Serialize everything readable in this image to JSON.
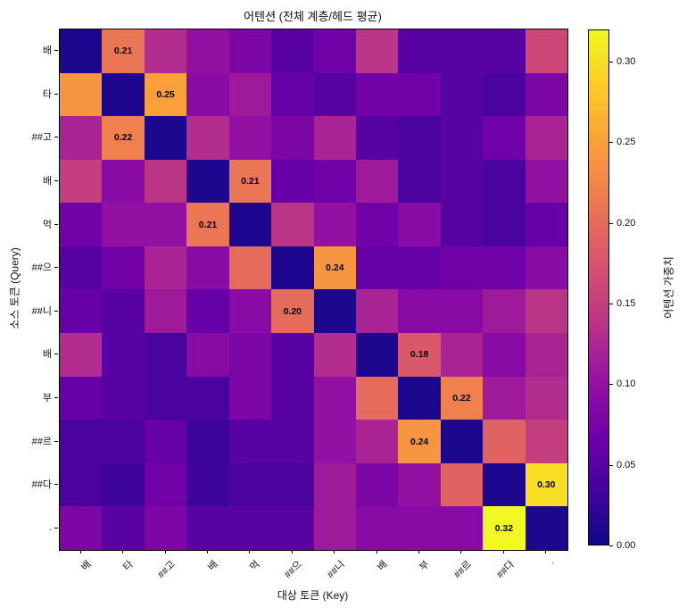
{
  "title": "어텐션 (전체 계층/헤드 평균)",
  "chart_data": {
    "type": "heatmap",
    "title": "어텐션 (전체 계층/헤드 평균)",
    "xlabel": "대상 토큰 (Key)",
    "ylabel": "소스 토큰 (Query)",
    "colorbar_label": "어텐션 가중치",
    "x_tokens": [
      "배",
      "타",
      "##고",
      "배",
      "먹",
      "##으",
      "##니",
      "배",
      "부",
      "##르",
      "##다",
      "."
    ],
    "y_tokens": [
      "배",
      "타",
      "##고",
      "배",
      "먹",
      "##으",
      "##니",
      "배",
      "부",
      "##르",
      "##다",
      "."
    ],
    "vmin": 0.0,
    "vmax": 0.32,
    "colorbar_ticks": [
      "0.00",
      "0.05",
      "0.10",
      "0.15",
      "0.20",
      "0.25",
      "0.30"
    ],
    "colormap": "plasma",
    "colormap_stops": [
      "#0d0887",
      "#41049d",
      "#6a00a8",
      "#8f0da4",
      "#b12a90",
      "#cc4778",
      "#e16462",
      "#f2844b",
      "#fca636",
      "#fcce25",
      "#f0f921"
    ],
    "values": [
      [
        0.01,
        0.21,
        0.13,
        0.1,
        0.08,
        0.05,
        0.07,
        0.14,
        0.05,
        0.05,
        0.05,
        0.16
      ],
      [
        0.24,
        0.01,
        0.25,
        0.09,
        0.11,
        0.06,
        0.05,
        0.07,
        0.07,
        0.05,
        0.04,
        0.08
      ],
      [
        0.12,
        0.22,
        0.01,
        0.13,
        0.1,
        0.08,
        0.12,
        0.05,
        0.04,
        0.05,
        0.07,
        0.12
      ],
      [
        0.15,
        0.09,
        0.14,
        0.01,
        0.21,
        0.06,
        0.07,
        0.11,
        0.04,
        0.05,
        0.04,
        0.1
      ],
      [
        0.07,
        0.1,
        0.1,
        0.21,
        0.01,
        0.14,
        0.1,
        0.07,
        0.09,
        0.05,
        0.04,
        0.06
      ],
      [
        0.05,
        0.07,
        0.12,
        0.09,
        0.2,
        0.01,
        0.24,
        0.06,
        0.06,
        0.07,
        0.07,
        0.09
      ],
      [
        0.06,
        0.05,
        0.11,
        0.06,
        0.09,
        0.2,
        0.01,
        0.12,
        0.09,
        0.09,
        0.11,
        0.14
      ],
      [
        0.13,
        0.05,
        0.04,
        0.09,
        0.08,
        0.05,
        0.13,
        0.01,
        0.18,
        0.12,
        0.09,
        0.12
      ],
      [
        0.06,
        0.05,
        0.04,
        0.04,
        0.08,
        0.05,
        0.1,
        0.2,
        0.01,
        0.22,
        0.11,
        0.13
      ],
      [
        0.04,
        0.04,
        0.06,
        0.03,
        0.05,
        0.05,
        0.1,
        0.12,
        0.24,
        0.01,
        0.19,
        0.15
      ],
      [
        0.04,
        0.03,
        0.07,
        0.03,
        0.04,
        0.04,
        0.11,
        0.08,
        0.1,
        0.19,
        0.01,
        0.3
      ],
      [
        0.08,
        0.05,
        0.08,
        0.05,
        0.05,
        0.05,
        0.11,
        0.09,
        0.09,
        0.09,
        0.32,
        0.01
      ]
    ],
    "annotations": [
      {
        "row": 0,
        "col": 1,
        "label": "0.21"
      },
      {
        "row": 1,
        "col": 2,
        "label": "0.25"
      },
      {
        "row": 2,
        "col": 1,
        "label": "0.22"
      },
      {
        "row": 3,
        "col": 4,
        "label": "0.21"
      },
      {
        "row": 4,
        "col": 3,
        "label": "0.21"
      },
      {
        "row": 5,
        "col": 6,
        "label": "0.24"
      },
      {
        "row": 6,
        "col": 5,
        "label": "0.20"
      },
      {
        "row": 7,
        "col": 8,
        "label": "0.18"
      },
      {
        "row": 8,
        "col": 9,
        "label": "0.22"
      },
      {
        "row": 9,
        "col": 8,
        "label": "0.24"
      },
      {
        "row": 10,
        "col": 11,
        "label": "0.30"
      },
      {
        "row": 11,
        "col": 10,
        "label": "0.32"
      }
    ]
  }
}
